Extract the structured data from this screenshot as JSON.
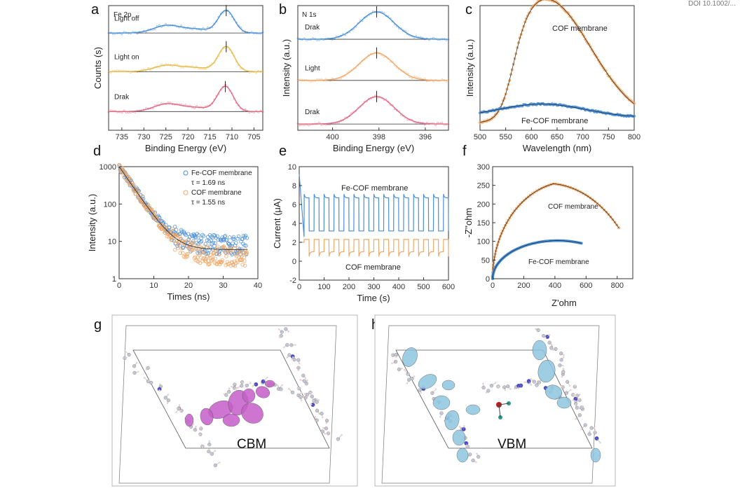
{
  "corner_text": "DOI 10.1002/...",
  "panels": {
    "a": "a",
    "b": "b",
    "c": "c",
    "d": "d",
    "e": "e",
    "f": "f",
    "g": "g",
    "h": "h"
  },
  "colors": {
    "blue": "#4a8fd8",
    "orange": "#f0a868",
    "pink": "#e06a84",
    "gold": "#e8b84a",
    "brown": "#a0563f",
    "purple": "#c55ec8",
    "cyan": "#8ec6e0",
    "dark": "#222222"
  },
  "structures": {
    "g_label": "CBM",
    "h_label": "VBM"
  },
  "chart_data": [
    {
      "id": "a",
      "type": "line",
      "title": "Fe 2p",
      "xlabel": "Binding Energy (eV)",
      "ylabel": "Counts (s)",
      "xlim": [
        738,
        703
      ],
      "xticks": [
        735,
        730,
        725,
        720,
        715,
        710,
        705
      ],
      "series": [
        {
          "name": "Light off",
          "color": "#4a8fd8",
          "baseline": 0.78,
          "peaks": [
            [
              711.3,
              0.18,
              1.8
            ],
            [
              724.8,
              0.06,
              3
            ]
          ]
        },
        {
          "name": "Light on",
          "color": "#e8b84a",
          "baseline": 0.47,
          "peaks": [
            [
              711.3,
              0.2,
              1.8
            ],
            [
              724.8,
              0.05,
              3
            ]
          ]
        },
        {
          "name": "Drak",
          "color": "#e06a84",
          "baseline": 0.15,
          "peaks": [
            [
              711.5,
              0.2,
              1.8
            ],
            [
              724.8,
              0.06,
              3
            ]
          ]
        }
      ]
    },
    {
      "id": "b",
      "type": "line",
      "title": "N 1s",
      "xlabel": "Binding Energy (eV)",
      "ylabel": "Intensity (a.u.)",
      "xlim": [
        401.5,
        395
      ],
      "xticks": [
        400,
        398,
        396
      ],
      "series": [
        {
          "name": "Drak",
          "color": "#4a8fd8",
          "baseline": 0.73,
          "peaks": [
            [
              398.1,
              0.22,
              0.75
            ]
          ]
        },
        {
          "name": "Light",
          "color": "#f0a868",
          "baseline": 0.4,
          "peaks": [
            [
              398.1,
              0.22,
              0.75
            ]
          ]
        },
        {
          "name": "Drak",
          "color": "#e06a84",
          "baseline": 0.05,
          "peaks": [
            [
              398.1,
              0.22,
              0.75
            ]
          ]
        }
      ]
    },
    {
      "id": "c",
      "type": "scatter",
      "xlabel": "Wavelength (nm)",
      "ylabel": "Intensity (a.u.)",
      "xlim": [
        500,
        800
      ],
      "xticks": [
        500,
        550,
        600,
        650,
        700,
        750,
        800
      ],
      "series": [
        {
          "name": "COF membrane",
          "color": "#f0a868"
        },
        {
          "name": "Fe-COF membrane",
          "color": "#4a8fd8"
        }
      ]
    },
    {
      "id": "d",
      "type": "scatter",
      "xlabel": "Times (ns)",
      "ylabel": "Intensity (a.u.)",
      "xlim": [
        0,
        40
      ],
      "xticks": [
        0,
        10,
        20,
        30,
        40
      ],
      "ylim": [
        1,
        1000
      ],
      "yscale": "log",
      "yticks": [
        1,
        10,
        100,
        1000
      ],
      "series": [
        {
          "name": "Fe-COF membrane",
          "note": "τ = 1.69 ns",
          "color": "#4a8fd8"
        },
        {
          "name": "COF membrane",
          "note": "τ = 1.55 ns",
          "color": "#f0a868"
        }
      ]
    },
    {
      "id": "e",
      "type": "line",
      "xlabel": "Time (s)",
      "ylabel": "Current (μA)",
      "xlim": [
        0,
        600
      ],
      "xticks": [
        0,
        100,
        200,
        300,
        400,
        500,
        600
      ],
      "ylim": [
        -2,
        10
      ],
      "yticks": [
        -2,
        0,
        2,
        4,
        6,
        8,
        10
      ],
      "series": [
        {
          "name": "Fe-COF membrane",
          "color": "#4a8fd8",
          "on": 6.7,
          "off": 3.2
        },
        {
          "name": "COF membrane",
          "color": "#f0a868",
          "on": 2.3,
          "off": 1.0
        }
      ]
    },
    {
      "id": "f",
      "type": "scatter",
      "xlabel": "Z'ohm",
      "ylabel": "-Z''ohm",
      "xlim": [
        0,
        900
      ],
      "xticks": [
        0,
        200,
        400,
        600,
        800
      ],
      "ylim": [
        0,
        300
      ],
      "yticks": [
        0,
        50,
        100,
        150,
        200,
        250,
        300
      ],
      "series": [
        {
          "name": "COF membrane",
          "color": "#f0a868",
          "arc_end": 810,
          "arc_peak": 260
        },
        {
          "name": "Fe-COF membrane",
          "color": "#4a8fd8",
          "arc_end": 570,
          "arc_peak": 100
        }
      ]
    }
  ]
}
